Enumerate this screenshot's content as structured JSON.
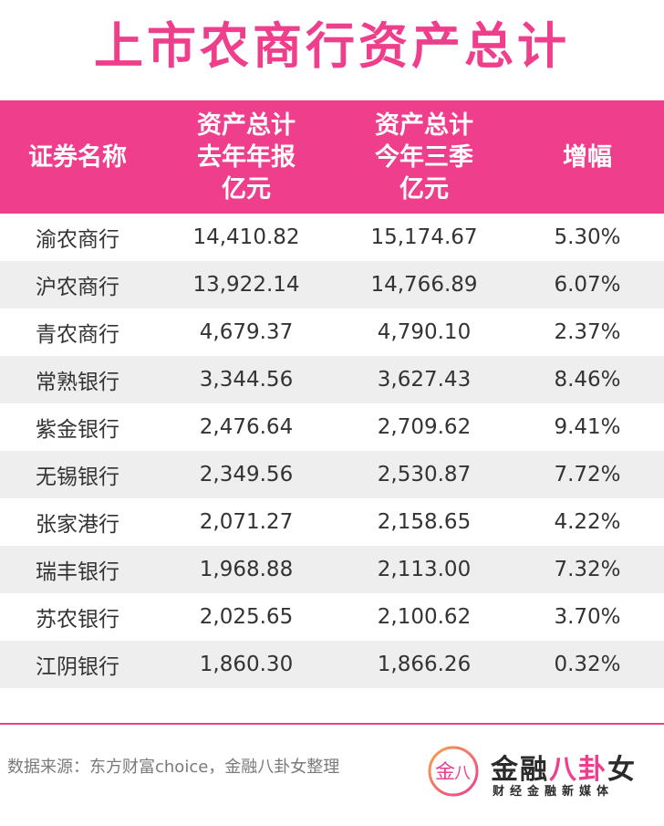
{
  "title": "上市农商行资产总计",
  "table": {
    "headers": [
      [
        "证券名称"
      ],
      [
        "资产总计",
        "去年年报",
        "亿元"
      ],
      [
        "资产总计",
        "今年三季",
        "亿元"
      ],
      [
        "增幅"
      ]
    ],
    "rows": [
      [
        "渝农商行",
        "14,410.82",
        "15,174.67",
        "5.30%"
      ],
      [
        "沪农商行",
        "13,922.14",
        "14,766.89",
        "6.07%"
      ],
      [
        "青农商行",
        "4,679.37",
        "4,790.10",
        "2.37%"
      ],
      [
        "常熟银行",
        "3,344.56",
        "3,627.43",
        "8.46%"
      ],
      [
        "紫金银行",
        "2,476.64",
        "2,709.62",
        "9.41%"
      ],
      [
        "无锡银行",
        "2,349.56",
        "2,530.87",
        "7.72%"
      ],
      [
        "张家港行",
        "2,071.27",
        "2,158.65",
        "4.22%"
      ],
      [
        "瑞丰银行",
        "1,968.88",
        "2,113.00",
        "7.32%"
      ],
      [
        "苏农银行",
        "2,025.65",
        "2,100.62",
        "3.70%"
      ],
      [
        "江阴银行",
        "1,860.30",
        "1,866.26",
        "0.32%"
      ]
    ]
  },
  "footer": {
    "source": "数据来源：东方财富choice，金融八卦女整理",
    "brand_name_a": "金融",
    "brand_name_b": "八卦",
    "brand_name_c": "女",
    "brand_sub": "财经金融新媒体",
    "logo_glyph_a": "金",
    "logo_glyph_b": "八"
  },
  "colors": {
    "accent": "#ef3e8c",
    "row_alt": "#eeeeee",
    "text": "#333333"
  }
}
